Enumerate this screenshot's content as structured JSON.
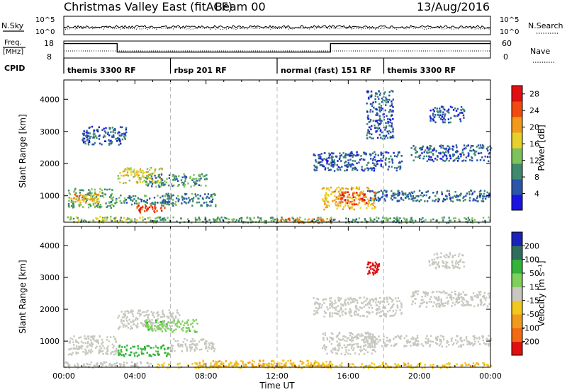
{
  "header": {
    "title": "Christmas Valley East (fitACF)",
    "beam": "Beam 00",
    "date": "13/Aug/2016"
  },
  "status_panels": {
    "nsky_label": "N.Sky",
    "nsky_right_label": "N.Search",
    "noise_ticks": [
      "10^5",
      "10^0"
    ],
    "freq_label_1": "Freq.",
    "freq_label_2": "[MHz]",
    "freq_ticks": [
      "18",
      "8"
    ],
    "nave_label": "Nave",
    "nave_ticks": [
      "60",
      "0"
    ],
    "cpid_label": "CPID",
    "cpid_segments": [
      {
        "label": "themis 3300 RF",
        "start_hour": 0,
        "end_hour": 6
      },
      {
        "label": "rbsp 201 RF",
        "start_hour": 6,
        "end_hour": 12
      },
      {
        "label": "normal (fast) 151 RF",
        "start_hour": 12,
        "end_hour": 18
      },
      {
        "label": "themis 3300 RF",
        "start_hour": 18,
        "end_hour": 24
      }
    ],
    "freq_steps": [
      {
        "start_hour": 0,
        "end_hour": 3,
        "mhz": 16.5
      },
      {
        "start_hour": 3,
        "end_hour": 15,
        "mhz": 11.5
      },
      {
        "start_hour": 15,
        "end_hour": 24,
        "mhz": 16.5
      }
    ]
  },
  "chart_data": [
    {
      "type": "heatmap",
      "panel": "power",
      "ylabel": "Slant Range [km]",
      "yticks": [
        1000,
        2000,
        3000,
        4000
      ],
      "ylim": [
        180,
        4600
      ],
      "xlim": [
        0,
        24
      ],
      "colorbar_label": "Power [dB]",
      "colorbar_ticks": [
        4,
        8,
        12,
        16,
        20,
        24,
        28
      ],
      "colorbar_range": [
        0,
        30
      ],
      "colors": [
        "#1b14e0",
        "#2a55a8",
        "#3f8a6e",
        "#7dc25a",
        "#e8d02a",
        "#f29a1c",
        "#f24b12",
        "#e01010"
      ],
      "features": [
        {
          "t0": 0.0,
          "t1": 5.0,
          "r0": 180,
          "r1": 380,
          "value": 14
        },
        {
          "t0": 5.0,
          "t1": 24.0,
          "r0": 180,
          "r1": 360,
          "value": 11
        },
        {
          "t0": 12.0,
          "t1": 15.0,
          "r0": 180,
          "r1": 330,
          "value": 22
        },
        {
          "t0": 0.2,
          "t1": 2.8,
          "r0": 650,
          "r1": 1250,
          "value": 12
        },
        {
          "t0": 0.5,
          "t1": 2.0,
          "r0": 800,
          "r1": 1100,
          "value": 20
        },
        {
          "t0": 2.5,
          "t1": 6.0,
          "r0": 750,
          "r1": 1050,
          "value": 9
        },
        {
          "t0": 4.0,
          "t1": 5.8,
          "r0": 500,
          "r1": 750,
          "value": 25
        },
        {
          "t0": 3.0,
          "t1": 5.5,
          "r0": 1400,
          "r1": 1900,
          "value": 16
        },
        {
          "t0": 4.5,
          "t1": 8.0,
          "r0": 1300,
          "r1": 1700,
          "value": 10
        },
        {
          "t0": 5.5,
          "t1": 8.5,
          "r0": 700,
          "r1": 1100,
          "value": 8
        },
        {
          "t0": 1.0,
          "t1": 3.5,
          "r0": 2600,
          "r1": 3200,
          "value": 6
        },
        {
          "t0": 14.5,
          "t1": 17.5,
          "r0": 600,
          "r1": 1300,
          "value": 19
        },
        {
          "t0": 15.5,
          "t1": 17.0,
          "r0": 750,
          "r1": 1150,
          "value": 25
        },
        {
          "t0": 17.0,
          "t1": 24.0,
          "r0": 850,
          "r1": 1200,
          "value": 7
        },
        {
          "t0": 14.0,
          "t1": 19.0,
          "r0": 1800,
          "r1": 2400,
          "value": 6
        },
        {
          "t0": 19.5,
          "t1": 24.0,
          "r0": 2100,
          "r1": 2600,
          "value": 6
        },
        {
          "t0": 17.0,
          "t1": 18.5,
          "r0": 2800,
          "r1": 4300,
          "value": 6
        },
        {
          "t0": 20.5,
          "t1": 22.5,
          "r0": 3300,
          "r1": 3800,
          "value": 6
        }
      ]
    },
    {
      "type": "heatmap",
      "panel": "velocity",
      "ylabel": "Slant Range [km]",
      "yticks": [
        1000,
        2000,
        3000,
        4000
      ],
      "ylim": [
        180,
        4600
      ],
      "xlim": [
        0,
        24
      ],
      "xlabel": "Time UT",
      "xticks": [
        "00:00",
        "04:00",
        "08:00",
        "12:00",
        "16:00",
        "20:00",
        "00:00"
      ],
      "colorbar_label": "Velocity [m s⁻¹]",
      "colorbar_ticks": [
        200,
        100,
        50,
        15,
        -15,
        -50,
        -100,
        -200
      ],
      "colors": [
        "#1b22b8",
        "#2f6e5a",
        "#33b33a",
        "#7dd05a",
        "#c8c8c0",
        "#f2c81c",
        "#f29a1c",
        "#f26a14",
        "#e01010"
      ],
      "features": [
        {
          "t0": 0.0,
          "t1": 5.0,
          "r0": 180,
          "r1": 380,
          "value": 0
        },
        {
          "t0": 5.0,
          "t1": 24.0,
          "r0": 180,
          "r1": 340,
          "value": -40
        },
        {
          "t0": 7.5,
          "t1": 15.0,
          "r0": 200,
          "r1": 420,
          "value": -45
        },
        {
          "t0": 0.2,
          "t1": 3.0,
          "r0": 600,
          "r1": 1200,
          "value": 0
        },
        {
          "t0": 3.0,
          "t1": 6.0,
          "r0": 550,
          "r1": 900,
          "value": 60
        },
        {
          "t0": 3.0,
          "t1": 6.5,
          "r0": 1400,
          "r1": 2000,
          "value": 0
        },
        {
          "t0": 4.5,
          "t1": 7.5,
          "r0": 1300,
          "r1": 1700,
          "value": 40
        },
        {
          "t0": 6.0,
          "t1": 8.5,
          "r0": 700,
          "r1": 1100,
          "value": 0
        },
        {
          "t0": 14.5,
          "t1": 17.5,
          "r0": 600,
          "r1": 1300,
          "value": 0
        },
        {
          "t0": 17.0,
          "t1": 24.0,
          "r0": 850,
          "r1": 1200,
          "value": 0
        },
        {
          "t0": 14.0,
          "t1": 19.0,
          "r0": 1800,
          "r1": 2400,
          "value": 0
        },
        {
          "t0": 19.5,
          "t1": 24.0,
          "r0": 2100,
          "r1": 2600,
          "value": 0
        },
        {
          "t0": 17.0,
          "t1": 17.7,
          "r0": 3100,
          "r1": 3500,
          "value": -250
        },
        {
          "t0": 20.5,
          "t1": 22.5,
          "r0": 3300,
          "r1": 3800,
          "value": 0
        }
      ]
    }
  ]
}
